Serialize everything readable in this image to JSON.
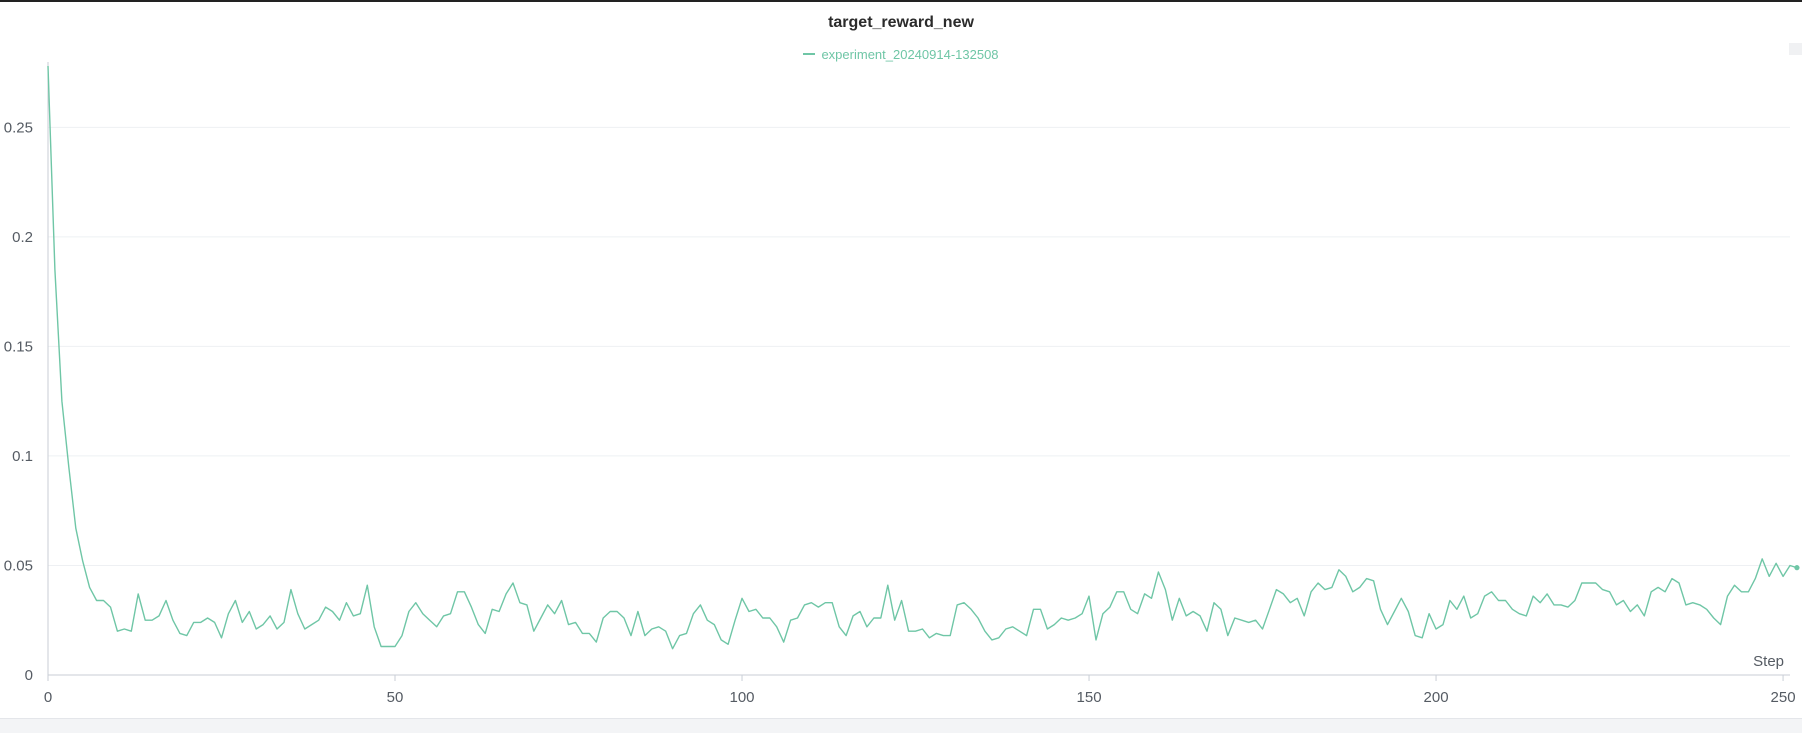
{
  "colors": {
    "series": "#6fc6a6",
    "axis": "#c9ced6",
    "grid": "#eef0f3",
    "text": "#555b63"
  },
  "chart_data": {
    "type": "line",
    "title": "target_reward_new",
    "xlabel": "Step",
    "ylabel": "",
    "xlim": [
      0,
      251
    ],
    "ylim": [
      0,
      0.278
    ],
    "xticks": [
      0,
      50,
      100,
      150,
      200,
      250
    ],
    "yticks": [
      0,
      0.05,
      0.1,
      0.15,
      0.2,
      0.25
    ],
    "grid": true,
    "legend_position": "top-center",
    "series": [
      {
        "name": "experiment_20240914-132508",
        "y": [
          0.278,
          0.185,
          0.125,
          0.095,
          0.067,
          0.052,
          0.04,
          0.034,
          0.034,
          0.031,
          0.02,
          0.021,
          0.02,
          0.037,
          0.025,
          0.025,
          0.027,
          0.034,
          0.025,
          0.019,
          0.018,
          0.024,
          0.024,
          0.026,
          0.024,
          0.017,
          0.028,
          0.034,
          0.024,
          0.029,
          0.021,
          0.023,
          0.027,
          0.021,
          0.024,
          0.039,
          0.028,
          0.021,
          0.023,
          0.025,
          0.031,
          0.029,
          0.025,
          0.033,
          0.027,
          0.028,
          0.041,
          0.022,
          0.013,
          0.013,
          0.013,
          0.018,
          0.029,
          0.033,
          0.028,
          0.025,
          0.022,
          0.027,
          0.028,
          0.038,
          0.038,
          0.031,
          0.023,
          0.019,
          0.03,
          0.029,
          0.037,
          0.042,
          0.033,
          0.032,
          0.02,
          0.026,
          0.032,
          0.028,
          0.034,
          0.023,
          0.024,
          0.019,
          0.019,
          0.015,
          0.026,
          0.029,
          0.029,
          0.026,
          0.018,
          0.029,
          0.018,
          0.021,
          0.022,
          0.02,
          0.012,
          0.018,
          0.019,
          0.028,
          0.032,
          0.025,
          0.023,
          0.016,
          0.014,
          0.025,
          0.035,
          0.029,
          0.03,
          0.026,
          0.026,
          0.022,
          0.015,
          0.025,
          0.026,
          0.032,
          0.033,
          0.031,
          0.033,
          0.033,
          0.022,
          0.018,
          0.027,
          0.029,
          0.022,
          0.026,
          0.026,
          0.041,
          0.025,
          0.034,
          0.02,
          0.02,
          0.021,
          0.017,
          0.019,
          0.018,
          0.018,
          0.032,
          0.033,
          0.03,
          0.026,
          0.02,
          0.016,
          0.017,
          0.021,
          0.022,
          0.02,
          0.018,
          0.03,
          0.03,
          0.021,
          0.023,
          0.026,
          0.025,
          0.026,
          0.028,
          0.036,
          0.016,
          0.028,
          0.031,
          0.038,
          0.038,
          0.03,
          0.028,
          0.037,
          0.035,
          0.047,
          0.039,
          0.025,
          0.035,
          0.027,
          0.029,
          0.027,
          0.02,
          0.033,
          0.03,
          0.018,
          0.026,
          0.025,
          0.024,
          0.025,
          0.021,
          0.03,
          0.039,
          0.037,
          0.033,
          0.035,
          0.027,
          0.038,
          0.042,
          0.039,
          0.04,
          0.048,
          0.045,
          0.038,
          0.04,
          0.044,
          0.043,
          0.03,
          0.023,
          0.029,
          0.035,
          0.029,
          0.018,
          0.017,
          0.028,
          0.021,
          0.023,
          0.034,
          0.03,
          0.036,
          0.026,
          0.028,
          0.036,
          0.038,
          0.034,
          0.034,
          0.03,
          0.028,
          0.027,
          0.036,
          0.033,
          0.037,
          0.032,
          0.032,
          0.031,
          0.034,
          0.042,
          0.042,
          0.042,
          0.039,
          0.038,
          0.032,
          0.034,
          0.029,
          0.032,
          0.027,
          0.038,
          0.04,
          0.038,
          0.044,
          0.042,
          0.032,
          0.033,
          0.032,
          0.03,
          0.026,
          0.023,
          0.036,
          0.041,
          0.038,
          0.038,
          0.044,
          0.053,
          0.045,
          0.051,
          0.045,
          0.05,
          0.049
        ]
      }
    ]
  }
}
